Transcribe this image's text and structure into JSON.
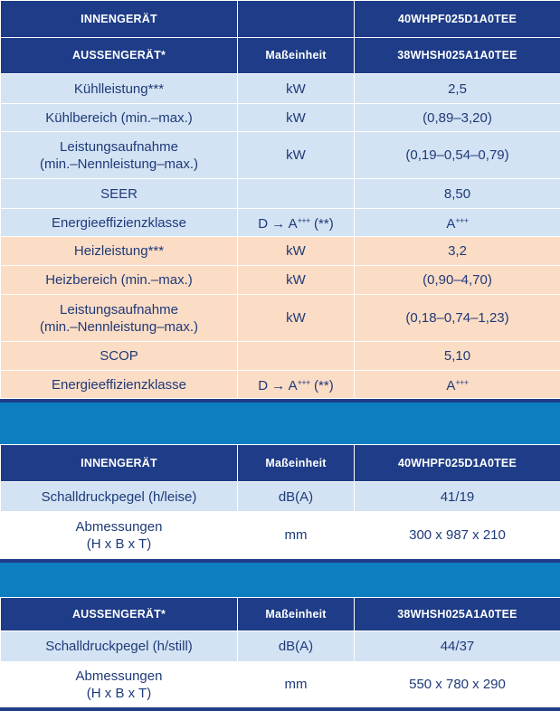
{
  "table1": {
    "header1": {
      "label": "INNENGERÄT",
      "unit": "",
      "model": "40WHPF025D1A0TEE"
    },
    "header2": {
      "label": "AUSSENGERÄT*",
      "unit": "Maßeinheit",
      "model": "38WHSH025A1A0TEE"
    },
    "cooling": [
      {
        "label": "Kühlleistung***",
        "unit": "kW",
        "value": "2,5"
      },
      {
        "label": "Kühlbereich (min.–max.)",
        "unit": "kW",
        "value": "(0,89–3,20)"
      },
      {
        "label_line1": "Leistungsaufnahme",
        "label_line2": "(min.–Nennleistung–max.)",
        "unit": "kW",
        "value": "(0,19–0,54–0,79)"
      },
      {
        "label": "SEER",
        "unit": "",
        "value": "8,50"
      },
      {
        "label": "Energieeffizienzklasse",
        "unit_base": "D → A",
        "unit_sup": "+++",
        "unit_tail": " (**)",
        "value_base": "A",
        "value_sup": "+++"
      }
    ],
    "heating": [
      {
        "label": "Heizleistung***",
        "unit": "kW",
        "value": "3,2"
      },
      {
        "label": "Heizbereich (min.–max.)",
        "unit": "kW",
        "value": "(0,90–4,70)"
      },
      {
        "label_line1": "Leistungsaufnahme",
        "label_line2": "(min.–Nennleistung–max.)",
        "unit": "kW",
        "value": "(0,18–0,74–1,23)"
      },
      {
        "label": "SCOP",
        "unit": "",
        "value": "5,10"
      },
      {
        "label": "Energieeffizienzklasse",
        "unit_base": "D → A",
        "unit_sup": "+++",
        "unit_tail": " (**)",
        "value_base": "A",
        "value_sup": "+++"
      }
    ]
  },
  "table2": {
    "header": {
      "label": "INNENGERÄT",
      "unit": "Maßeinheit",
      "model": "40WHPF025D1A0TEE"
    },
    "rows": [
      {
        "label": "Schalldruckpegel (h/leise)",
        "unit": "dB(A)",
        "value": "41/19"
      },
      {
        "label_line1": "Abmessungen",
        "label_line2": "(H x B x T)",
        "unit": "mm",
        "value": "300 x 987 x 210"
      }
    ]
  },
  "table3": {
    "header": {
      "label": "AUSSENGERÄT*",
      "unit": "Maßeinheit",
      "model": "38WHSH025A1A0TEE"
    },
    "rows": [
      {
        "label": "Schalldruckpegel (h/still)",
        "unit": "dB(A)",
        "value": "44/37"
      },
      {
        "label_line1": "Abmessungen",
        "label_line2": "(H x B x T)",
        "unit": "mm",
        "value": "550 x 780 x 290"
      }
    ]
  },
  "colors": {
    "header": "#1e3c87",
    "cooling_row": "#d3e3f4",
    "heating_row": "#fbdcc5",
    "band": "#0d7fc1",
    "text": "#1f3a78"
  }
}
